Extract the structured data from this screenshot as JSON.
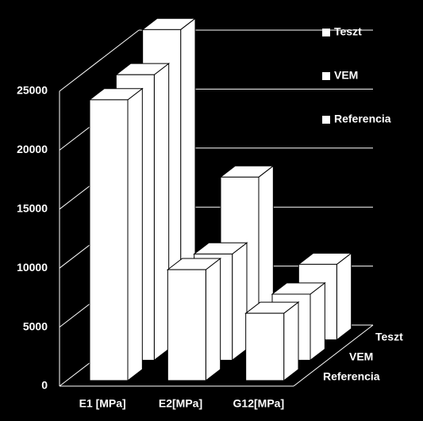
{
  "chart_data": {
    "type": "bar3d",
    "categories": [
      "E1 [MPa]",
      "E2[MPa]",
      "G12[MPa]"
    ],
    "series": [
      {
        "name": "Referencia",
        "color": "#ffffff",
        "values": [
          23800,
          9400,
          5700
        ]
      },
      {
        "name": "VEM",
        "color": "#ffffff",
        "values": [
          24200,
          9000,
          5600
        ]
      },
      {
        "name": "Teszt",
        "color": "#ffffff",
        "values": [
          26300,
          13800,
          6400
        ]
      }
    ],
    "ylim": [
      0,
      25000
    ],
    "yticks": [
      0,
      5000,
      10000,
      15000,
      20000,
      25000
    ],
    "grid": true
  }
}
